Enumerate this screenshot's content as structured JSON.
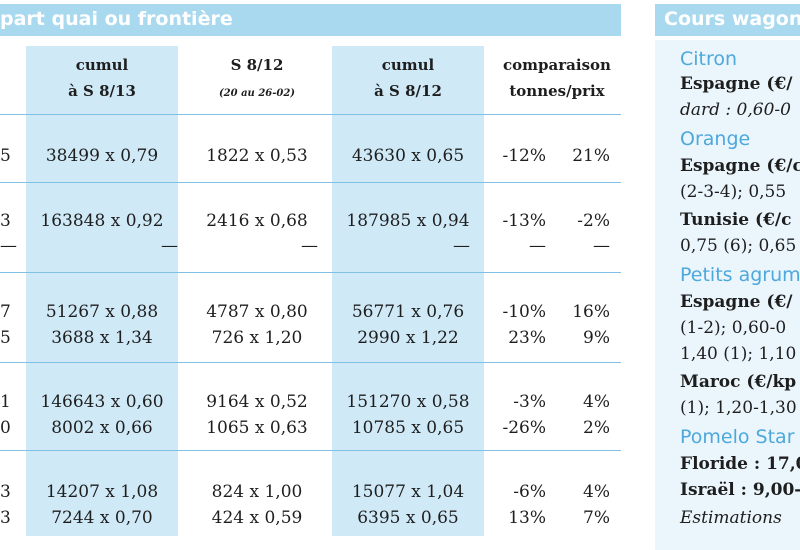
{
  "left": {
    "title": "part quai ou frontière",
    "columns": [
      {
        "line1": "cumul",
        "line2": "à S 8/13",
        "note": ""
      },
      {
        "line1": "S 8/12",
        "line2": "",
        "note": "(20 au 26-02)"
      },
      {
        "line1": "cumul",
        "line2": "à S 8/12",
        "note": ""
      },
      {
        "line1": "comparaison",
        "line2": "tonnes/prix",
        "note": ""
      }
    ],
    "rows": [
      {
        "edge": "5",
        "c1": "38499 x 0,79",
        "c2": "1822 x 0,53",
        "c3": "43630 x 0,65",
        "p1": "-12%",
        "p2": "21%"
      },
      {
        "edge": "3",
        "c1": "163848 x 0,92",
        "c2": "2416 x 0,68",
        "c3": "187985 x 0,94",
        "p1": "-13%",
        "p2": "-2%"
      },
      {
        "edge": "—",
        "c1": "—",
        "c2": "—",
        "c3": "—",
        "p1": "—",
        "p2": "—"
      },
      {
        "edge": "7",
        "c1": "51267 x 0,88",
        "c2": "4787 x 0,80",
        "c3": "56771 x 0,76",
        "p1": "-10%",
        "p2": "16%"
      },
      {
        "edge": "5",
        "c1": "3688 x 1,34",
        "c2": "726 x 1,20",
        "c3": "2990 x 1,22",
        "p1": "23%",
        "p2": "9%"
      },
      {
        "edge": "1",
        "c1": "146643 x 0,60",
        "c2": "9164 x 0,52",
        "c3": "151270 x 0,58",
        "p1": "-3%",
        "p2": "4%"
      },
      {
        "edge": "0",
        "c1": "8002 x 0,66",
        "c2": "1065 x 0,63",
        "c3": "10785 x 0,65",
        "p1": "-26%",
        "p2": "2%"
      },
      {
        "edge": "3",
        "c1": "14207 x 1,08",
        "c2": "824 x 1,00",
        "c3": "15077 x 1,04",
        "p1": "-6%",
        "p2": "4%"
      },
      {
        "edge": "3",
        "c1": "7244 x 0,70",
        "c2": "424 x 0,59",
        "c3": "6395 x 0,65",
        "p1": "13%",
        "p2": "7%"
      }
    ]
  },
  "right": {
    "title": "Cours wagon",
    "lines": [
      {
        "text": "Citron",
        "style": "cat"
      },
      {
        "text": "Espagne  (€/",
        "style": "bold"
      },
      {
        "text": "dard : 0,60-0",
        "style": "italic"
      },
      {
        "text": "Orange",
        "style": "cat"
      },
      {
        "text": "Espagne (€/c",
        "style": "bold"
      },
      {
        "text": "(2-3-4); 0,55",
        "style": "plain"
      },
      {
        "text": "Tunisie  (€/c",
        "style": "bold"
      },
      {
        "text": "0,75 (6); 0,65",
        "style": "plain"
      },
      {
        "text": "Petits agrum",
        "style": "cat"
      },
      {
        "text": "Espagne  (€/",
        "style": "bold"
      },
      {
        "text": "(1-2); 0,60-0",
        "style": "plain"
      },
      {
        "text": "1,40 (1); 1,10",
        "style": "plain"
      },
      {
        "text": "Maroc  (€/kp",
        "style": "bold"
      },
      {
        "text": "(1); 1,20-1,30",
        "style": "plain"
      },
      {
        "text": "Pomelo Star",
        "style": "cat"
      },
      {
        "text": "Floride : 17,0",
        "style": "bold"
      },
      {
        "text": "Israël : 9,00-",
        "style": "bold"
      },
      {
        "text": "Estimations",
        "style": "italic"
      }
    ]
  }
}
